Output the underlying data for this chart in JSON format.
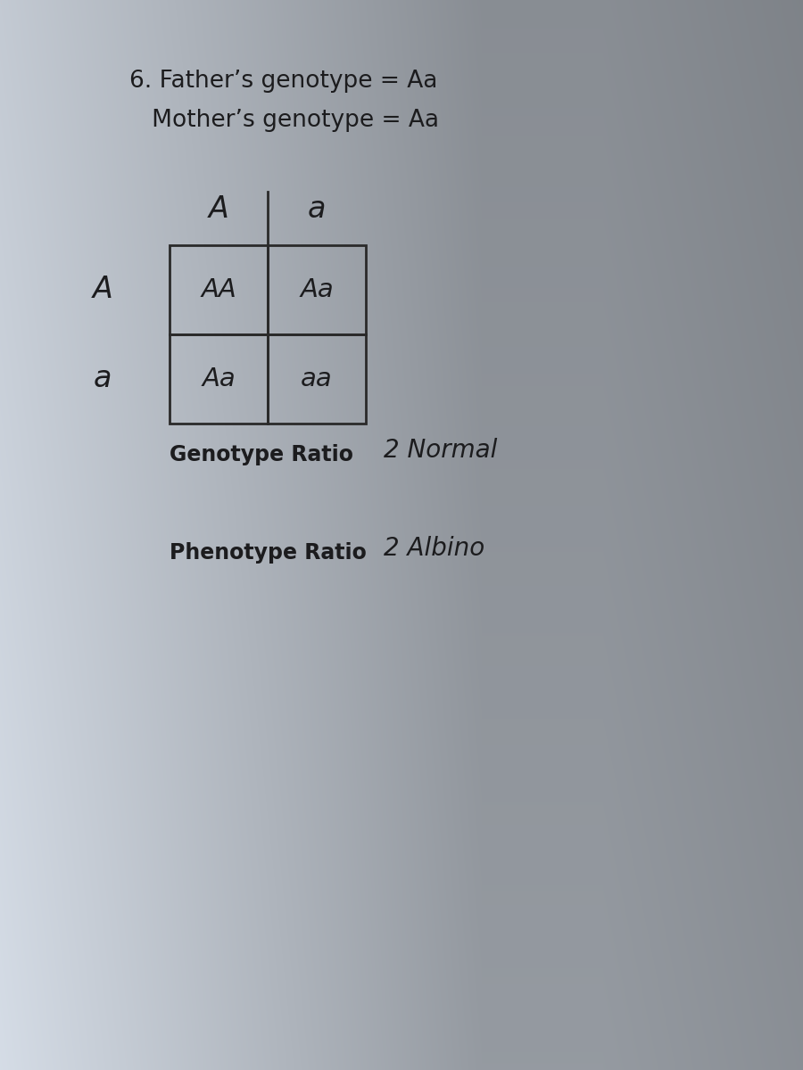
{
  "bg_color_center": "#dde5ef",
  "bg_color_edge_left": "#a8b8cc",
  "bg_color_edge_right": "#c5d2e0",
  "bg_color_top": "#bfcad8",
  "bg_color_bottom": "#c0ccda",
  "title_line1": "6. Father’s genotype = Aa",
  "title_line2": "   Mother’s genotype = Aa",
  "title_fontsize": 19,
  "col_headers": [
    "A",
    "a"
  ],
  "row_headers": [
    "A",
    "a"
  ],
  "cells": [
    [
      "AA",
      "Aa"
    ],
    [
      "Aa",
      "aa"
    ]
  ],
  "genotype_ratio_label": "Genotype Ratio",
  "genotype_ratio_value": "2 Normal",
  "phenotype_ratio_label": "Phenotype Ratio",
  "phenotype_ratio_value": "2 Albino",
  "label_fontsize": 17,
  "handwritten_fontsize": 20,
  "cell_fontsize": 21,
  "text_color": "#1c1c1e",
  "grid_color": "#2a2a2a",
  "grid_lw": 2.0
}
